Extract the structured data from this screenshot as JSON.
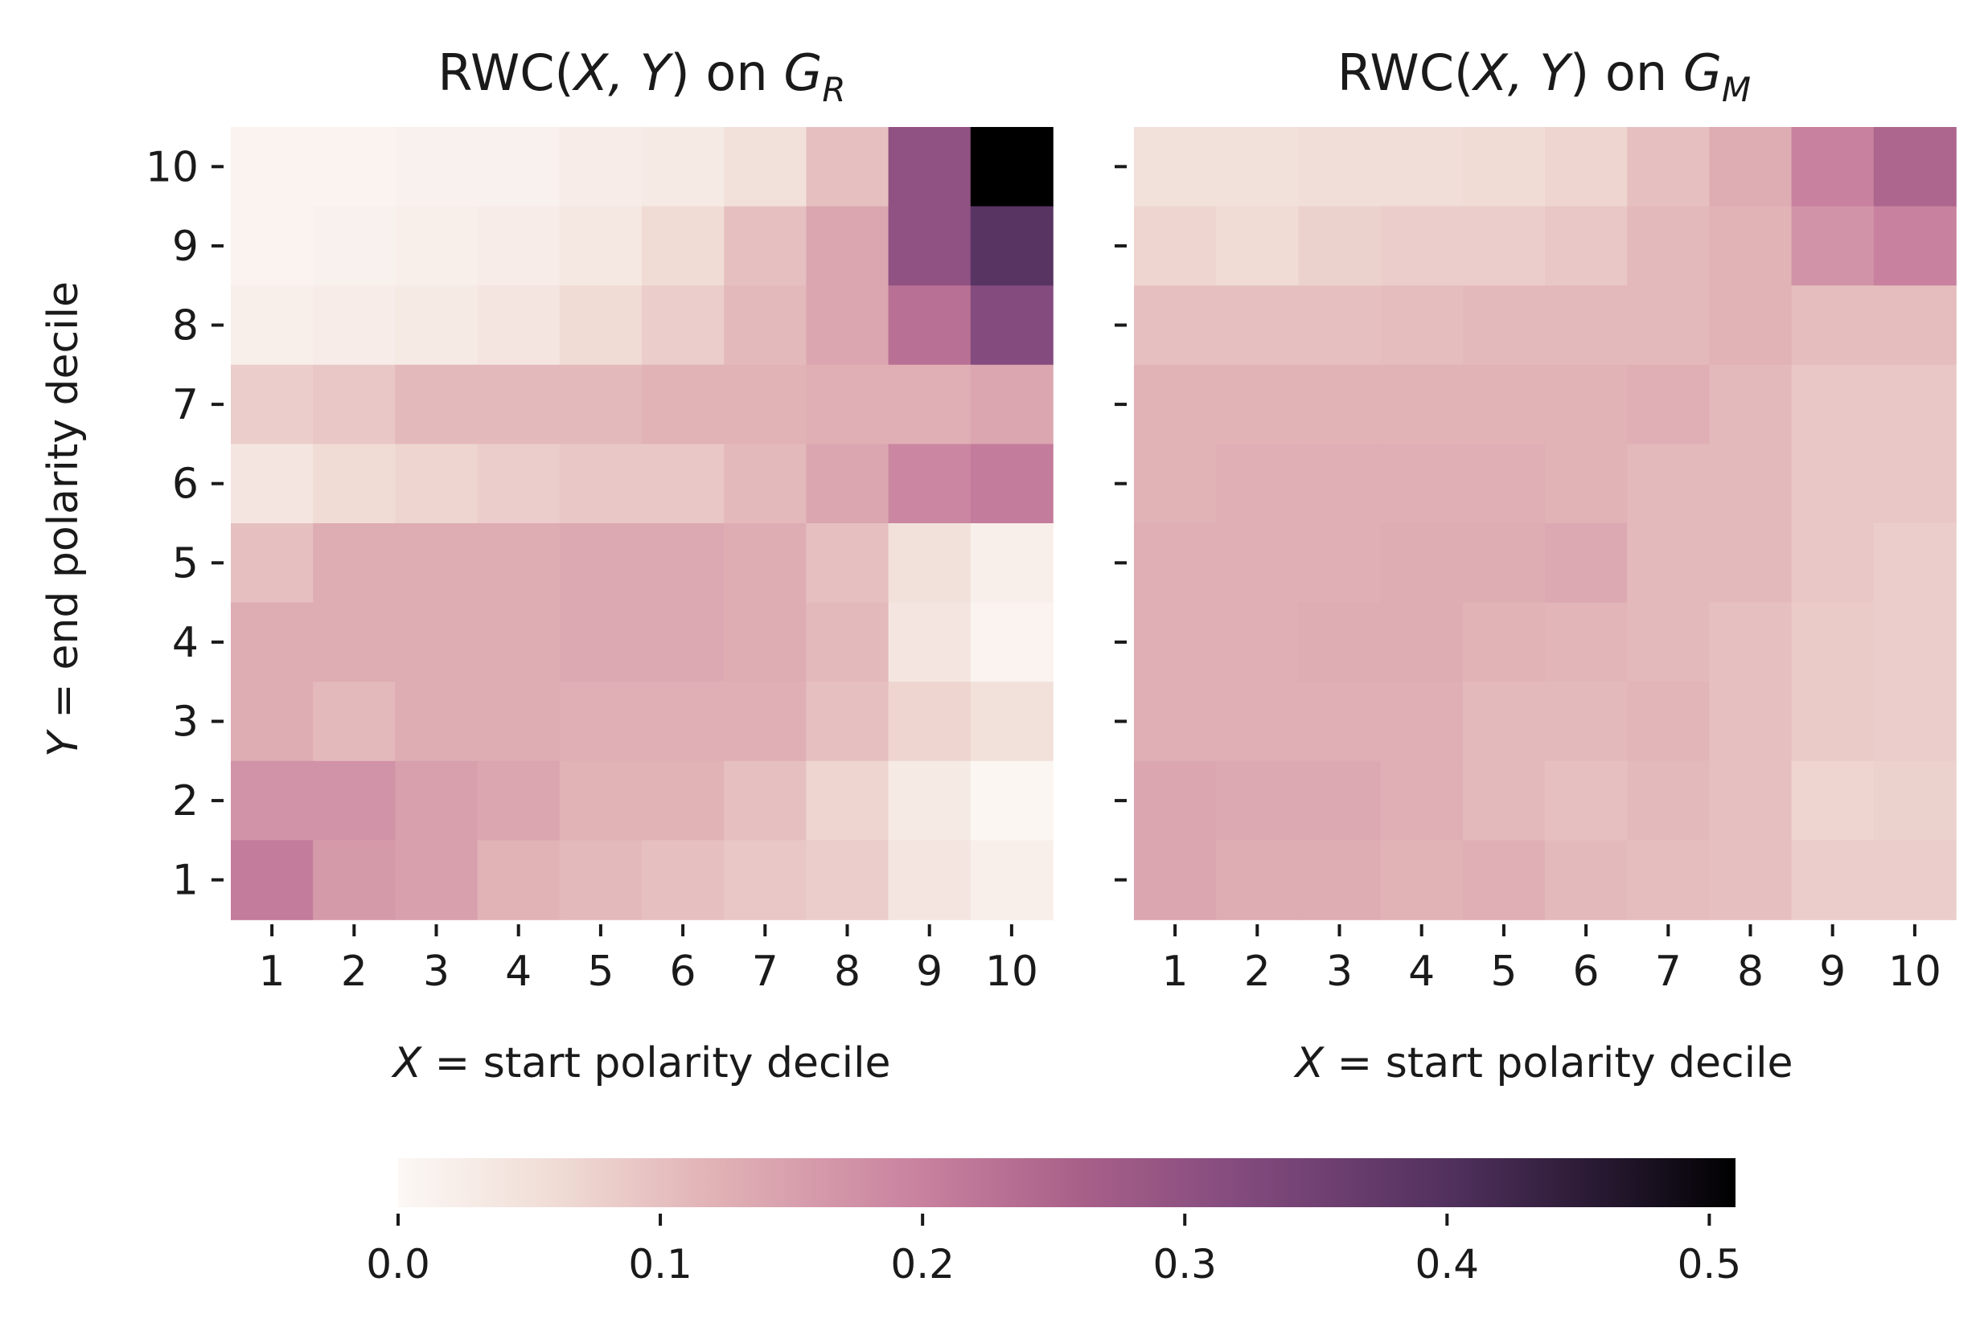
{
  "chart_data": [
    {
      "type": "heatmap",
      "title_prefix": "RWC(",
      "title_vars": "X, Y",
      "title_mid": ") on ",
      "title_graph": "G",
      "title_sub": "R",
      "xlabel_var": "X",
      "xlabel_text": " =  start polarity decile",
      "ylabel_var": "Y",
      "ylabel_text": " =  end polarity decile",
      "x": [
        "1",
        "2",
        "3",
        "4",
        "5",
        "6",
        "7",
        "8",
        "9",
        "10"
      ],
      "y": [
        "1",
        "2",
        "3",
        "4",
        "5",
        "6",
        "7",
        "8",
        "9",
        "10"
      ],
      "values_rows_top_to_bottom_y10_to_y1": [
        [
          0.01,
          0.01,
          0.015,
          0.015,
          0.025,
          0.03,
          0.05,
          0.1,
          0.3,
          0.51
        ],
        [
          0.01,
          0.015,
          0.02,
          0.025,
          0.035,
          0.06,
          0.1,
          0.14,
          0.3,
          0.39
        ],
        [
          0.02,
          0.025,
          0.03,
          0.04,
          0.06,
          0.08,
          0.11,
          0.14,
          0.23,
          0.32
        ],
        [
          0.08,
          0.09,
          0.11,
          0.11,
          0.11,
          0.12,
          0.12,
          0.125,
          0.125,
          0.14
        ],
        [
          0.04,
          0.06,
          0.07,
          0.08,
          0.09,
          0.09,
          0.11,
          0.14,
          0.19,
          0.21
        ],
        [
          0.1,
          0.13,
          0.13,
          0.13,
          0.135,
          0.135,
          0.13,
          0.1,
          0.05,
          0.02
        ],
        [
          0.13,
          0.13,
          0.13,
          0.13,
          0.135,
          0.135,
          0.13,
          0.11,
          0.04,
          0.01
        ],
        [
          0.13,
          0.11,
          0.13,
          0.13,
          0.125,
          0.125,
          0.125,
          0.1,
          0.07,
          0.05
        ],
        [
          0.17,
          0.17,
          0.15,
          0.14,
          0.12,
          0.12,
          0.1,
          0.07,
          0.03,
          0.005
        ],
        [
          0.21,
          0.16,
          0.15,
          0.12,
          0.11,
          0.1,
          0.09,
          0.08,
          0.04,
          0.02
        ]
      ]
    },
    {
      "type": "heatmap",
      "title_prefix": "RWC(",
      "title_vars": "X, Y",
      "title_mid": ") on ",
      "title_graph": "G",
      "title_sub": "M",
      "xlabel_var": "X",
      "xlabel_text": " =  start polarity decile",
      "x": [
        "1",
        "2",
        "3",
        "4",
        "5",
        "6",
        "7",
        "8",
        "9",
        "10"
      ],
      "y": [
        "1",
        "2",
        "3",
        "4",
        "5",
        "6",
        "7",
        "8",
        "9",
        "10"
      ],
      "values_rows_top_to_bottom_y10_to_y1": [
        [
          0.05,
          0.05,
          0.055,
          0.055,
          0.06,
          0.07,
          0.1,
          0.13,
          0.2,
          0.25
        ],
        [
          0.07,
          0.06,
          0.075,
          0.08,
          0.08,
          0.09,
          0.11,
          0.12,
          0.17,
          0.2
        ],
        [
          0.1,
          0.1,
          0.1,
          0.105,
          0.11,
          0.11,
          0.11,
          0.12,
          0.105,
          0.105
        ],
        [
          0.12,
          0.12,
          0.12,
          0.12,
          0.12,
          0.12,
          0.125,
          0.11,
          0.09,
          0.09
        ],
        [
          0.12,
          0.125,
          0.125,
          0.125,
          0.125,
          0.12,
          0.11,
          0.11,
          0.09,
          0.09
        ],
        [
          0.125,
          0.125,
          0.125,
          0.13,
          0.13,
          0.135,
          0.11,
          0.11,
          0.09,
          0.08
        ],
        [
          0.125,
          0.125,
          0.13,
          0.13,
          0.12,
          0.115,
          0.11,
          0.1,
          0.085,
          0.08
        ],
        [
          0.125,
          0.125,
          0.125,
          0.125,
          0.11,
          0.11,
          0.115,
          0.1,
          0.085,
          0.08
        ],
        [
          0.14,
          0.135,
          0.135,
          0.125,
          0.11,
          0.1,
          0.11,
          0.1,
          0.07,
          0.075
        ],
        [
          0.14,
          0.13,
          0.13,
          0.12,
          0.125,
          0.11,
          0.105,
          0.1,
          0.08,
          0.08
        ]
      ]
    }
  ],
  "colorbar": {
    "vmin": 0.0,
    "vmax": 0.51,
    "ticks": [
      0.0,
      0.1,
      0.2,
      0.3,
      0.4,
      0.5
    ],
    "tick_labels": [
      "0.0",
      "0.1",
      "0.2",
      "0.3",
      "0.4",
      "0.5"
    ],
    "stops": [
      {
        "v": 0.0,
        "color": "#fcf8f5"
      },
      {
        "v": 0.06,
        "color": "#f0dcd5"
      },
      {
        "v": 0.12,
        "color": "#e1b2b6"
      },
      {
        "v": 0.2,
        "color": "#c8819e"
      },
      {
        "v": 0.26,
        "color": "#a86089"
      },
      {
        "v": 0.32,
        "color": "#844b7e"
      },
      {
        "v": 0.4,
        "color": "#52315f"
      },
      {
        "v": 0.47,
        "color": "#1f1428"
      },
      {
        "v": 0.51,
        "color": "#000000"
      }
    ]
  }
}
